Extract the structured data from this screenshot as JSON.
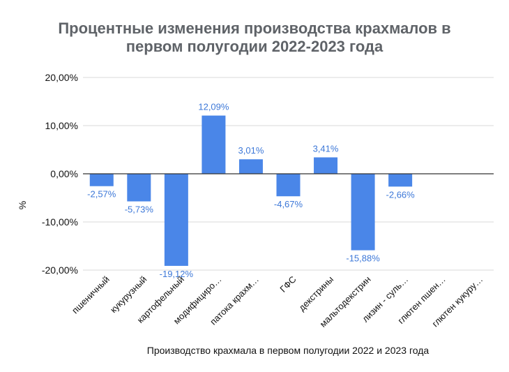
{
  "chart_data": {
    "type": "bar",
    "title_lines": [
      "Процентные изменения производства крахмалов в",
      "первом полугодии 2022-2023 года"
    ],
    "xlabel": "Производство крахмала в первом полугодии 2022 и 2023 года",
    "ylabel": "%",
    "ylim": [
      -20,
      20
    ],
    "yticks": [
      20,
      10,
      0,
      -10,
      -20
    ],
    "ytick_labels": [
      "20,00%",
      "10,00%",
      "0,00%",
      "-10,00%",
      "-20,00%"
    ],
    "categories": [
      "пшеничный",
      "кукурузный",
      "картофельный",
      "модифициро…",
      "патока крахм…",
      "ГФС",
      "декстрины",
      "мальтодекстрин",
      "лизин - суль…",
      "глютен пшен…",
      "глютен кукуру…"
    ],
    "values": [
      -2.57,
      -5.73,
      -19.12,
      12.09,
      3.01,
      -4.67,
      3.41,
      -15.88,
      -2.66,
      null,
      null
    ],
    "data_labels": [
      "-2,57%",
      "-5,73%",
      "-19,12%",
      "12,09%",
      "3,01%",
      "-4,67%",
      "3,41%",
      "-15,88%",
      "-2,66%",
      "",
      ""
    ],
    "grid": true,
    "colors": {
      "bar": "#4a86e8",
      "label": "#3d78d8",
      "grid": "#d9d9d9",
      "zero_line": "#333333"
    }
  }
}
